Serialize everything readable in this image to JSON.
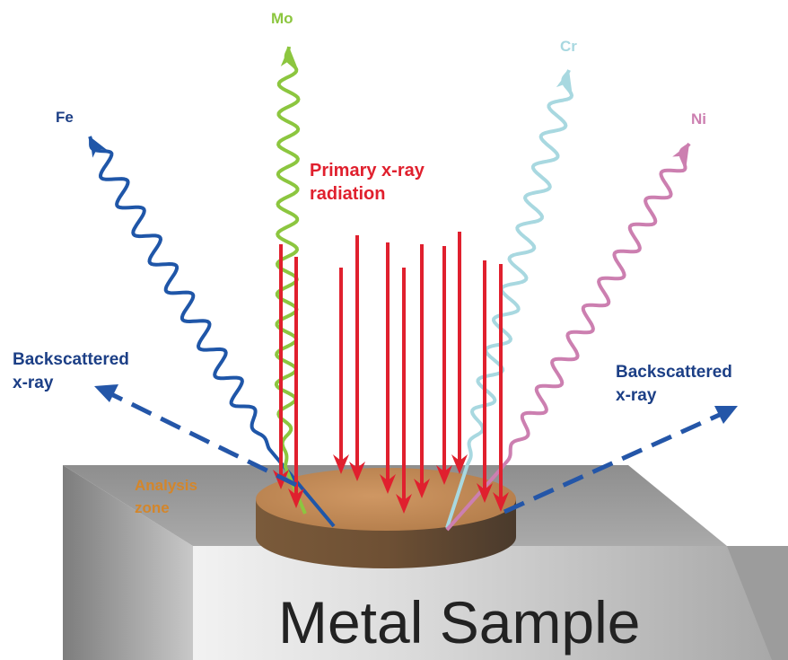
{
  "labels": {
    "mo": "Mo",
    "fe": "Fe",
    "cr": "Cr",
    "ni": "Ni",
    "primary_line1": "Primary x-ray",
    "primary_line2": "radiation",
    "backscatter_left_line1": "Backscattered",
    "backscatter_left_line2": "x-ray",
    "backscatter_right_line1": "Backscattered",
    "backscatter_right_line2": "x-ray",
    "analysis_line1": "Analysis",
    "analysis_line2": "zone",
    "sample": "Metal Sample"
  },
  "colors": {
    "fe": "#1f56a8",
    "mo": "#8cc63f",
    "cr": "#a8d8e0",
    "ni": "#cc7fb0",
    "primary": "#e0202e",
    "backscatter": "#2456a8",
    "label_blue": "#1c3f86",
    "analysis_text": "#d4862a",
    "disc_top": "#c38a55",
    "slab_top": "#9a9a9a",
    "sample_text": "#222222"
  }
}
